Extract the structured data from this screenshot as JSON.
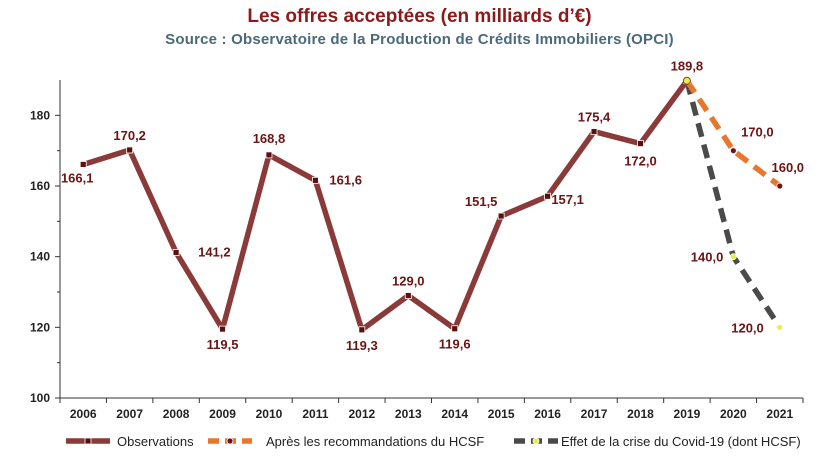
{
  "title": "Les offres acceptées (en milliards d’€)",
  "subtitle": "Source : Observatoire de la Production de Crédits Immobiliers (OPCI)",
  "chart_data": {
    "type": "line",
    "title": "Les offres acceptées (en milliards d’€)",
    "subtitle": "Source : Observatoire de la Production de Crédits Immobiliers (OPCI)",
    "xlabel": "",
    "ylabel": "",
    "x": [
      "2006",
      "2007",
      "2008",
      "2009",
      "2010",
      "2011",
      "2012",
      "2013",
      "2014",
      "2015",
      "2016",
      "2017",
      "2018",
      "2019",
      "2020",
      "2021"
    ],
    "ylim": [
      100,
      190
    ],
    "yticks": [
      100,
      120,
      140,
      160,
      180
    ],
    "grid": false,
    "legend_position": "bottom",
    "series": [
      {
        "name": "Observations",
        "color": "#8b3a3a",
        "style": "solid",
        "x": [
          "2006",
          "2007",
          "2008",
          "2009",
          "2010",
          "2011",
          "2012",
          "2013",
          "2014",
          "2015",
          "2016",
          "2017",
          "2018",
          "2019"
        ],
        "values": [
          166.1,
          170.2,
          141.2,
          119.5,
          168.8,
          161.6,
          119.3,
          129.0,
          119.6,
          151.5,
          157.1,
          175.4,
          172.0,
          189.8
        ],
        "labels": [
          "166,1",
          "170,2",
          "141,2",
          "119,5",
          "168,8",
          "161,6",
          "119,3",
          "129,0",
          "119,6",
          "151,5",
          "157,1",
          "175,4",
          "172,0",
          "189,8"
        ]
      },
      {
        "name": "Après les recommandations du HCSF",
        "color": "#e8762d",
        "style": "dashed",
        "x": [
          "2019",
          "2020",
          "2021"
        ],
        "values": [
          189.8,
          170.0,
          160.0
        ],
        "labels": [
          "",
          "170,0",
          "160,0"
        ]
      },
      {
        "name": "Effet de la crise du Covid-19 (dont HCSF)",
        "color": "#4a4a4a",
        "style": "dashed",
        "x": [
          "2019",
          "2020",
          "2021"
        ],
        "values": [
          189.8,
          140.0,
          120.0
        ],
        "labels": [
          "",
          "140,0",
          "120,0"
        ]
      }
    ]
  }
}
